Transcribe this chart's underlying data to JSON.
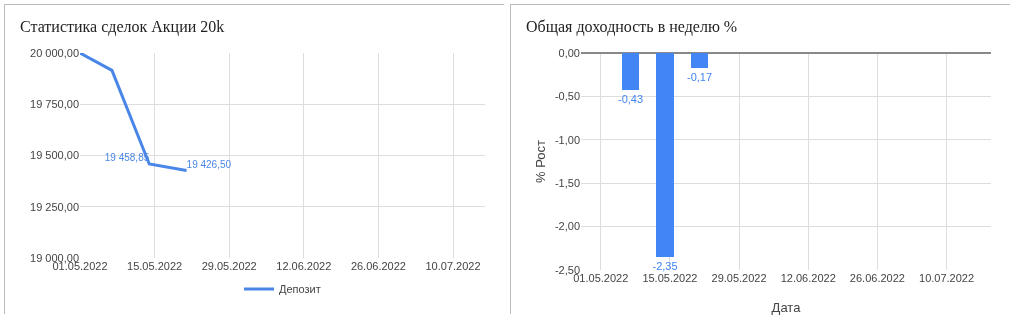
{
  "chart_data": [
    {
      "type": "line",
      "title": "Статистика сделок Акции 20k",
      "x": [
        "2022-05-01",
        "2022-05-07",
        "2022-05-14",
        "2022-05-21"
      ],
      "series": [
        {
          "name": "Депозит",
          "color": "#4a86e8",
          "values": [
            20000,
            19915,
            19458.85,
            19426.5
          ],
          "value_labels": [
            null,
            null,
            "19 458,85",
            "19 426,50"
          ]
        }
      ],
      "xlim": [
        "2022-05-01",
        "2022-07-16"
      ],
      "xticks": [
        {
          "value": "2022-05-01",
          "label": "01.05.2022"
        },
        {
          "value": "2022-05-15",
          "label": "15.05.2022"
        },
        {
          "value": "2022-05-29",
          "label": "29.05.2022"
        },
        {
          "value": "2022-06-12",
          "label": "12.06.2022"
        },
        {
          "value": "2022-06-26",
          "label": "26.06.2022"
        },
        {
          "value": "2022-07-10",
          "label": "10.07.2022"
        }
      ],
      "ylim": [
        19000,
        20000
      ],
      "yticks": [
        {
          "value": 19000,
          "label": "19 000,00"
        },
        {
          "value": 19250,
          "label": "19 250,00"
        },
        {
          "value": 19500,
          "label": "19 500,00"
        },
        {
          "value": 19750,
          "label": "19 750,00"
        },
        {
          "value": 20000,
          "label": "20 000,00"
        }
      ],
      "grid": true,
      "legend": "bottom",
      "marker": "none",
      "line_style": "solid"
    },
    {
      "type": "bar",
      "title": "Общая доходность в неделю %",
      "xlabel": "Дата",
      "ylabel": "% Рост",
      "x": [
        "2022-05-07",
        "2022-05-14",
        "2022-05-21"
      ],
      "series": [
        {
          "color": "#4285f4",
          "values": [
            -0.43,
            -2.35,
            -0.17
          ],
          "value_labels": [
            "-0,43",
            "-2,35",
            "-0,17"
          ]
        }
      ],
      "xlim": [
        "2022-04-27",
        "2022-07-19"
      ],
      "xticks": [
        {
          "value": "2022-05-01",
          "label": "01.05.2022"
        },
        {
          "value": "2022-05-15",
          "label": "15.05.2022"
        },
        {
          "value": "2022-05-29",
          "label": "29.05.2022"
        },
        {
          "value": "2022-06-12",
          "label": "12.06.2022"
        },
        {
          "value": "2022-06-26",
          "label": "26.06.2022"
        },
        {
          "value": "2022-07-10",
          "label": "10.07.2022"
        }
      ],
      "ylim": [
        -2.5,
        0
      ],
      "yticks": [
        {
          "value": 0,
          "label": "0,00"
        },
        {
          "value": -0.5,
          "label": "-0,50"
        },
        {
          "value": -1,
          "label": "-1,00"
        },
        {
          "value": -1.5,
          "label": "-1,50"
        },
        {
          "value": -2,
          "label": "-2,00"
        },
        {
          "value": -2.5,
          "label": "-2,50"
        }
      ],
      "grid": true,
      "legend": false
    }
  ]
}
